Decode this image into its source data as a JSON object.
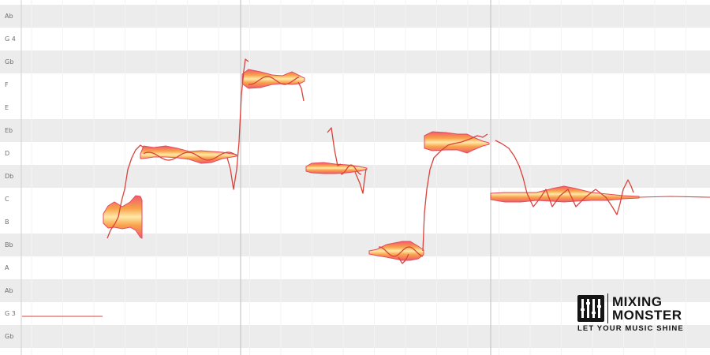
{
  "pitch_ruler": {
    "labels": [
      "Ab",
      "G 4",
      "Gb",
      "F",
      "E",
      "Eb",
      "D",
      "Db",
      "C",
      "B",
      "Bb",
      "A",
      "Ab",
      "G 3",
      "Gb"
    ],
    "shaded_rows": [
      0,
      2,
      5,
      7,
      10,
      12,
      14
    ]
  },
  "blob_colors": {
    "outer": "#f05a6e",
    "mid": "#f8a24a",
    "inner": "#ffe9a8",
    "pitch_line": "#d9433c"
  },
  "brand": {
    "line1": "MIXING",
    "line2": "MONSTER",
    "tagline": "LET YOUR MUSIC SHINE"
  }
}
